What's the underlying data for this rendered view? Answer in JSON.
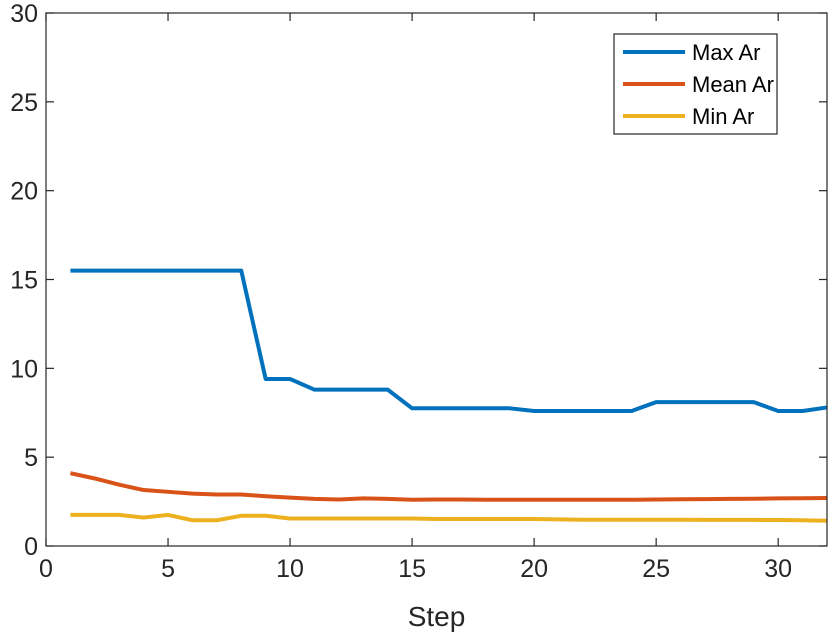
{
  "chart_data": {
    "type": "line",
    "title": "",
    "xlabel": "Step",
    "ylabel": "",
    "xlim": [
      0,
      32
    ],
    "ylim": [
      0,
      30
    ],
    "xticks": [
      0,
      5,
      10,
      15,
      20,
      25,
      30
    ],
    "yticks": [
      0,
      5,
      10,
      15,
      20,
      25,
      30
    ],
    "grid": false,
    "legend_position": "top-right",
    "x": [
      1,
      2,
      3,
      4,
      5,
      6,
      7,
      8,
      9,
      10,
      11,
      12,
      13,
      14,
      15,
      16,
      17,
      18,
      19,
      20,
      21,
      22,
      23,
      24,
      25,
      26,
      27,
      28,
      29,
      30,
      31,
      32
    ],
    "series": [
      {
        "name": "Max Ar",
        "color": "#0072BD",
        "values": [
          15.5,
          15.5,
          15.5,
          15.5,
          15.5,
          15.5,
          15.5,
          15.5,
          9.4,
          9.4,
          8.8,
          8.8,
          8.8,
          8.8,
          7.75,
          7.75,
          7.75,
          7.75,
          7.75,
          7.6,
          7.6,
          7.6,
          7.6,
          7.6,
          8.1,
          8.1,
          8.1,
          8.1,
          8.1,
          7.6,
          7.6,
          7.8
        ]
      },
      {
        "name": "Mean Ar",
        "color": "#D95319",
        "values": [
          4.1,
          3.8,
          3.45,
          3.15,
          3.05,
          2.95,
          2.9,
          2.9,
          2.8,
          2.72,
          2.65,
          2.62,
          2.68,
          2.65,
          2.6,
          2.62,
          2.62,
          2.6,
          2.6,
          2.6,
          2.6,
          2.6,
          2.6,
          2.6,
          2.62,
          2.63,
          2.64,
          2.65,
          2.66,
          2.68,
          2.69,
          2.7
        ]
      },
      {
        "name": "Min Ar",
        "color": "#EDB120",
        "values": [
          1.75,
          1.75,
          1.75,
          1.6,
          1.75,
          1.45,
          1.45,
          1.7,
          1.7,
          1.55,
          1.55,
          1.55,
          1.55,
          1.55,
          1.55,
          1.52,
          1.52,
          1.52,
          1.52,
          1.52,
          1.5,
          1.48,
          1.48,
          1.48,
          1.48,
          1.48,
          1.47,
          1.47,
          1.47,
          1.46,
          1.45,
          1.42
        ]
      }
    ]
  }
}
